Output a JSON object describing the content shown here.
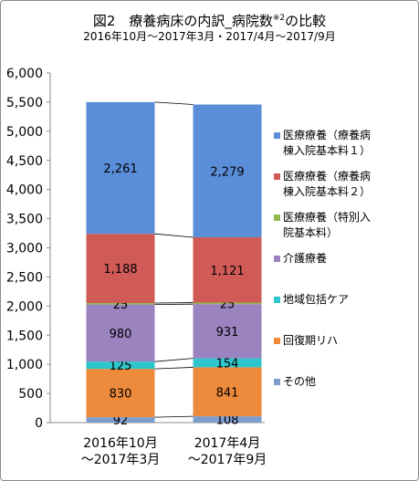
{
  "title": "図2　療養病床の内訳_病院数",
  "title_sup": "※2",
  "title_suffix": "の比較",
  "subtitle": "2016年10月～2017年3月・2017/4月～2017/9月",
  "chart_data": {
    "type": "bar",
    "stacked": true,
    "categories": [
      "2016年10月\n～2017年3月",
      "2017年4月\n～2017年9月"
    ],
    "series": [
      {
        "name": "その他",
        "values": [
          92,
          108
        ],
        "color": "#7d9dcf"
      },
      {
        "name": "回復期リハ",
        "values": [
          830,
          841
        ],
        "color": "#ed8a3c"
      },
      {
        "name": "地域包括ケア",
        "values": [
          125,
          154
        ],
        "color": "#2ec6cc"
      },
      {
        "name": "介護療養",
        "values": [
          980,
          931
        ],
        "color": "#9a83bf"
      },
      {
        "name": "医療療養（特別入院基本料）",
        "values": [
          25,
          25
        ],
        "color": "#8fb84e"
      },
      {
        "name": "医療療養（療養病棟入院基本料２）",
        "values": [
          1188,
          1121
        ],
        "color": "#d05a56"
      },
      {
        "name": "医療療養（療養病棟入院基本料１）",
        "values": [
          2261,
          2279
        ],
        "color": "#5b8ed8"
      }
    ],
    "data_labels": [
      [
        "92",
        "108"
      ],
      [
        "830",
        "841"
      ],
      [
        "125",
        "154"
      ],
      [
        "980",
        "931"
      ],
      [
        "25",
        "25"
      ],
      [
        "1,188",
        "1,121"
      ],
      [
        "2,261",
        "2,279"
      ]
    ],
    "yticks": [
      "0",
      "500",
      "1,000",
      "1,500",
      "2,000",
      "2,500",
      "3,000",
      "3,500",
      "4,000",
      "4,500",
      "5,000",
      "5,500",
      "6,000"
    ],
    "ylim": [
      0,
      6000
    ],
    "xlabel": "",
    "ylabel": "",
    "legend_position": "right",
    "series_lines": true
  },
  "legend": [
    {
      "label": "医療療養（療養病\n棟入院基本料１）",
      "color": "#5b8ed8"
    },
    {
      "label": "医療療養（療養病\n棟入院基本料２）",
      "color": "#d05a56"
    },
    {
      "label": "医療療養（特別入\n院基本料）",
      "color": "#8fb84e"
    },
    {
      "label": "介護療養",
      "color": "#9a83bf"
    },
    {
      "label": "地域包括ケア",
      "color": "#2ec6cc"
    },
    {
      "label": "回復期リハ",
      "color": "#ed8a3c"
    },
    {
      "label": "その他",
      "color": "#7d9dcf"
    }
  ]
}
